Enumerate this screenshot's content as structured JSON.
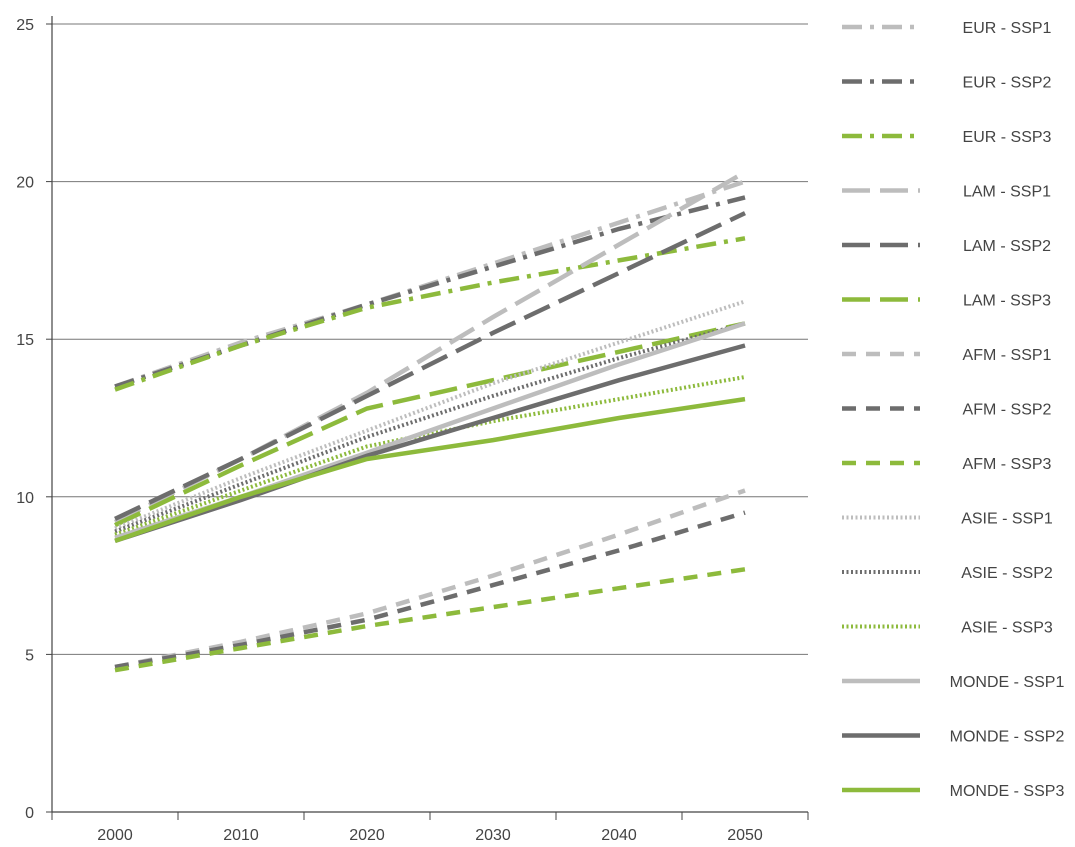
{
  "chart_data": {
    "type": "line",
    "title": "",
    "xlabel": "",
    "ylabel": "",
    "x": [
      2000,
      2010,
      2020,
      2030,
      2040,
      2050
    ],
    "xlim": [
      1995,
      2055
    ],
    "ylim": [
      0,
      25
    ],
    "x_ticks": [
      "2000",
      "2010",
      "2020",
      "2030",
      "2040",
      "2050"
    ],
    "y_ticks": [
      "0",
      "5",
      "10",
      "15",
      "20",
      "25"
    ],
    "grid": "horizontal",
    "legend_position": "right",
    "series": [
      {
        "name": "EUR - SSP1",
        "color": "#bdbdbd",
        "style": "dashdot",
        "values": [
          13.5,
          14.9,
          16.1,
          17.4,
          18.7,
          20.0
        ]
      },
      {
        "name": "EUR - SSP2",
        "color": "#6d6d6d",
        "style": "dashdot",
        "values": [
          13.5,
          14.8,
          16.1,
          17.3,
          18.5,
          19.5
        ]
      },
      {
        "name": "EUR - SSP3",
        "color": "#8dba3c",
        "style": "dashdot",
        "values": [
          13.4,
          14.8,
          16.0,
          16.8,
          17.5,
          18.2
        ]
      },
      {
        "name": "LAM - SSP1",
        "color": "#bdbdbd",
        "style": "longdash",
        "values": [
          9.2,
          11.2,
          13.3,
          15.7,
          18.0,
          20.3
        ]
      },
      {
        "name": "LAM - SSP2",
        "color": "#6d6d6d",
        "style": "longdash",
        "values": [
          9.3,
          11.2,
          13.2,
          15.2,
          17.1,
          19.0
        ]
      },
      {
        "name": "LAM - SSP3",
        "color": "#8dba3c",
        "style": "longdash",
        "values": [
          9.1,
          11.0,
          12.8,
          13.7,
          14.6,
          15.5
        ]
      },
      {
        "name": "AFM - SSP1",
        "color": "#bdbdbd",
        "style": "dash",
        "values": [
          4.6,
          5.4,
          6.3,
          7.5,
          8.8,
          10.2
        ]
      },
      {
        "name": "AFM - SSP2",
        "color": "#6d6d6d",
        "style": "dash",
        "values": [
          4.6,
          5.3,
          6.1,
          7.2,
          8.3,
          9.5
        ]
      },
      {
        "name": "AFM - SSP3",
        "color": "#8dba3c",
        "style": "dash",
        "values": [
          4.5,
          5.2,
          5.9,
          6.5,
          7.1,
          7.7
        ]
      },
      {
        "name": "ASIE - SSP1",
        "color": "#bdbdbd",
        "style": "dotted",
        "values": [
          9.0,
          10.6,
          12.1,
          13.6,
          14.9,
          16.2
        ]
      },
      {
        "name": "ASIE - SSP2",
        "color": "#6d6d6d",
        "style": "dotted",
        "values": [
          8.9,
          10.4,
          11.9,
          13.2,
          14.4,
          15.5
        ]
      },
      {
        "name": "ASIE - SSP3",
        "color": "#8dba3c",
        "style": "dotted",
        "values": [
          8.8,
          10.2,
          11.6,
          12.4,
          13.1,
          13.8
        ]
      },
      {
        "name": "MONDE - SSP1",
        "color": "#bdbdbd",
        "style": "solid",
        "values": [
          8.7,
          10.0,
          11.4,
          12.8,
          14.2,
          15.5
        ]
      },
      {
        "name": "MONDE - SSP2",
        "color": "#6d6d6d",
        "style": "solid",
        "values": [
          8.6,
          9.9,
          11.3,
          12.5,
          13.7,
          14.8
        ]
      },
      {
        "name": "MONDE - SSP3",
        "color": "#8dba3c",
        "style": "solid",
        "values": [
          8.6,
          10.0,
          11.2,
          11.8,
          12.5,
          13.1
        ]
      }
    ]
  }
}
